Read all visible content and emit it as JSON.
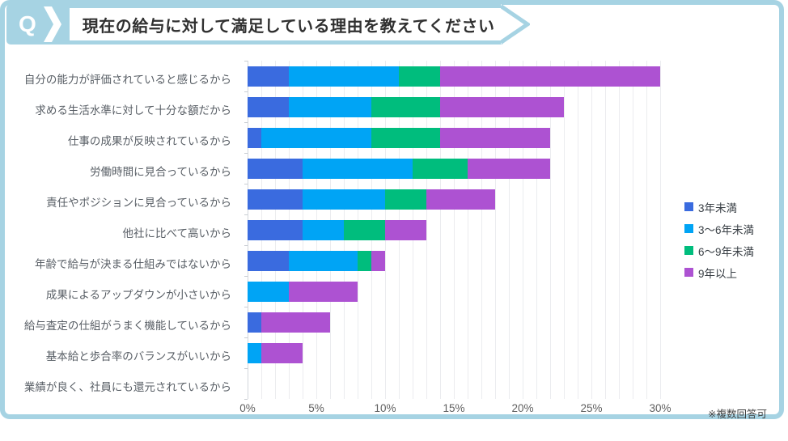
{
  "header": {
    "q_label": "Q",
    "title": "現在の給与に対して満足している理由を教えてください"
  },
  "note": "※複数回答可",
  "colors": {
    "accent": "#a6d3e3",
    "series_3nen_miman": "#3a6bdf",
    "series_3_6nen": "#00a4f5",
    "series_6_9nen": "#00bd7d",
    "series_9nen_ijou": "#ad52d2"
  },
  "chart_data": {
    "type": "bar",
    "orientation": "horizontal-stacked",
    "title": "現在の給与に対して満足している理由を教えてください",
    "xlabel": "",
    "ylabel": "",
    "x_max": 30,
    "grid_step_percent": 1,
    "legend_position": "right",
    "x_ticks": [
      "0%",
      "5%",
      "10%",
      "15%",
      "20%",
      "25%",
      "30%"
    ],
    "categories": [
      "自分の能力が評価されていると感じるから",
      "求める生活水準に対して十分な額だから",
      "仕事の成果が反映されているから",
      "労働時間に見合っているから",
      "責任やポジションに見合っているから",
      "他社に比べて高いから",
      "年齢で給与が決まる仕組みではないから",
      "成果によるアップダウンが小さいから",
      "給与査定の仕組がうまく機能しているから",
      "基本給と歩合率のバランスがいいから",
      "業績が良く、社員にも還元されているから"
    ],
    "series": [
      {
        "name": "3年未満",
        "color": "#3a6bdf",
        "values": [
          3,
          3,
          1,
          4,
          4,
          4,
          3,
          0,
          1,
          0,
          0
        ]
      },
      {
        "name": "3〜6年未満",
        "color": "#00a4f5",
        "values": [
          8,
          6,
          8,
          8,
          6,
          3,
          5,
          3,
          0,
          1,
          0
        ]
      },
      {
        "name": "6〜9年未満",
        "color": "#00bd7d",
        "values": [
          3,
          5,
          5,
          4,
          3,
          3,
          1,
          0,
          0,
          0,
          0
        ]
      },
      {
        "name": "9年以上",
        "color": "#ad52d2",
        "values": [
          16,
          9,
          8,
          6,
          5,
          3,
          1,
          5,
          5,
          3,
          0
        ]
      }
    ],
    "totals_percent": [
      30,
      23,
      22,
      22,
      18,
      13,
      10,
      8,
      6,
      4,
      0
    ]
  }
}
